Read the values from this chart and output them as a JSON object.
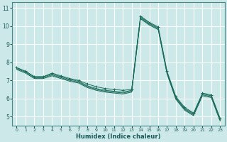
{
  "xlabel": "Humidex (Indice chaleur)",
  "background_color": "#cce8e8",
  "grid_color": "#ffffff",
  "line_color": "#1a6b5a",
  "xlim": [
    -0.5,
    23.5
  ],
  "ylim": [
    4.5,
    11.3
  ],
  "xticks": [
    0,
    1,
    2,
    3,
    4,
    5,
    6,
    7,
    8,
    9,
    10,
    11,
    12,
    13,
    14,
    15,
    16,
    17,
    18,
    19,
    20,
    21,
    22,
    23
  ],
  "yticks": [
    5,
    6,
    7,
    8,
    9,
    10,
    11
  ],
  "series": [
    [
      7.7,
      7.5,
      7.2,
      7.2,
      7.4,
      7.25,
      7.1,
      7.0,
      6.8,
      6.65,
      6.55,
      6.5,
      6.45,
      6.5,
      10.55,
      10.2,
      9.95,
      7.5,
      6.1,
      5.5,
      5.2,
      6.3,
      6.2,
      4.9
    ],
    [
      7.7,
      7.5,
      7.2,
      7.2,
      7.35,
      7.2,
      7.05,
      6.95,
      6.7,
      6.55,
      6.45,
      6.4,
      6.35,
      6.45,
      10.5,
      10.15,
      9.9,
      7.45,
      6.05,
      5.45,
      5.15,
      6.25,
      6.15,
      4.85
    ],
    [
      7.65,
      7.45,
      7.15,
      7.15,
      7.3,
      7.15,
      7.0,
      6.9,
      6.65,
      6.5,
      6.4,
      6.35,
      6.3,
      6.4,
      10.45,
      10.1,
      9.85,
      7.4,
      6.0,
      5.4,
      5.1,
      6.2,
      6.1,
      4.8
    ],
    [
      7.6,
      7.4,
      7.1,
      7.1,
      7.25,
      7.1,
      6.95,
      6.85,
      6.6,
      6.45,
      6.35,
      6.3,
      6.25,
      6.35,
      10.4,
      10.05,
      9.8,
      7.35,
      5.95,
      5.35,
      5.05,
      6.15,
      6.05,
      4.75
    ]
  ]
}
